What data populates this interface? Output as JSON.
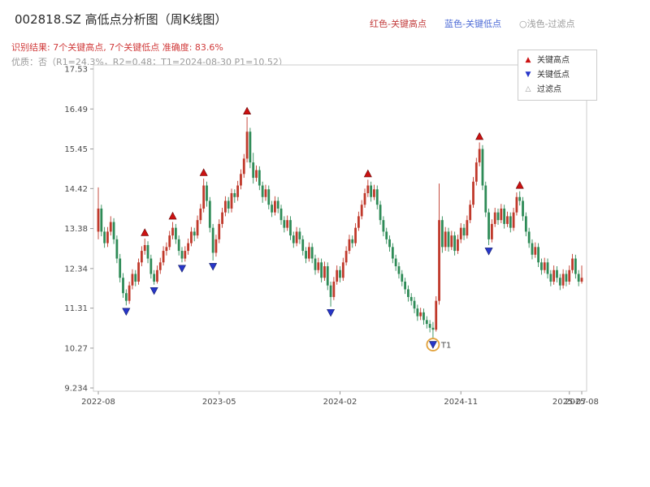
{
  "header": {
    "title": "002818.SZ 高低点分析图（周K线图）",
    "legend_top": [
      {
        "label": "红色-关键高点",
        "color": "#c23b3b"
      },
      {
        "label": "蓝色-关键低点",
        "color": "#4d6bd6"
      },
      {
        "label": "○浅色-过滤点",
        "color": "#999999"
      }
    ],
    "result_line": "识别结果: 7个关键高点, 7个关键低点  准确度: 83.6%",
    "quality_line": "优质：否（R1=24.3%，R2=0.48；T1=2024-08-30 P1=10.52）"
  },
  "chart_data": {
    "type": "candlestick",
    "symbol": "002818.SZ",
    "period": "weekly",
    "title": "002818.SZ 高低点分析图（周K线图）",
    "y_ticks": [
      "17.53",
      "16.49",
      "15.45",
      "14.42",
      "13.38",
      "12.34",
      "11.31",
      "10.27",
      "9.234"
    ],
    "ylim": [
      9.19,
      17.63
    ],
    "x_ticks": [
      {
        "week": 0,
        "label": "2022-08"
      },
      {
        "week": 39,
        "label": "2023-05"
      },
      {
        "week": 78,
        "label": "2024-02"
      },
      {
        "week": 117,
        "label": "2024-11"
      },
      {
        "week": 152,
        "label": "2025-07"
      },
      {
        "week": 156,
        "label": "2025-08"
      }
    ],
    "colors": {
      "up": "#c0392b",
      "down": "#2e8b57",
      "high_marker": "#cc1111",
      "low_marker": "#2736c9",
      "t1": "#e2a23c",
      "t1_text": "#c8861f"
    },
    "legend_box": [
      {
        "symbol": "▲",
        "label": "关键高点",
        "color": "#cc1111"
      },
      {
        "symbol": "▼",
        "label": "关键低点",
        "color": "#2736c9"
      },
      {
        "symbol": "△",
        "label": "过滤点",
        "color": "#9a9a9a"
      }
    ],
    "key_highs": [
      {
        "week": 15,
        "price": 13.12
      },
      {
        "week": 24,
        "price": 13.55
      },
      {
        "week": 34,
        "price": 14.68
      },
      {
        "week": 48,
        "price": 16.28
      },
      {
        "week": 87,
        "price": 14.65
      },
      {
        "week": 123,
        "price": 15.62
      },
      {
        "week": 136,
        "price": 14.35
      }
    ],
    "key_lows": [
      {
        "week": 9,
        "price": 11.38
      },
      {
        "week": 18,
        "price": 11.92
      },
      {
        "week": 27,
        "price": 12.5
      },
      {
        "week": 37,
        "price": 12.55
      },
      {
        "week": 75,
        "price": 11.35
      },
      {
        "week": 108,
        "price": 10.52
      },
      {
        "week": 126,
        "price": 12.95
      }
    ],
    "t1": {
      "week": 108,
      "price": 10.52,
      "label": "T1",
      "date": "2024-08-30"
    },
    "candles_ohlc": [
      [
        13.3,
        14.45,
        13.1,
        13.9
      ],
      [
        13.9,
        14.0,
        13.18,
        13.3
      ],
      [
        13.3,
        13.42,
        12.88,
        13.0
      ],
      [
        13.0,
        13.42,
        12.9,
        13.3
      ],
      [
        13.3,
        13.7,
        13.2,
        13.55
      ],
      [
        13.55,
        13.65,
        12.98,
        13.1
      ],
      [
        13.1,
        13.2,
        12.48,
        12.6
      ],
      [
        12.6,
        12.72,
        11.98,
        12.1
      ],
      [
        12.1,
        12.22,
        11.58,
        11.7
      ],
      [
        11.7,
        11.8,
        11.38,
        11.5
      ],
      [
        11.5,
        12.0,
        11.42,
        11.9
      ],
      [
        11.9,
        12.32,
        11.8,
        12.2
      ],
      [
        12.2,
        12.3,
        11.88,
        12.0
      ],
      [
        12.0,
        12.6,
        11.92,
        12.5
      ],
      [
        12.5,
        12.92,
        12.4,
        12.8
      ],
      [
        12.8,
        13.12,
        12.7,
        12.95
      ],
      [
        12.95,
        13.05,
        12.48,
        12.6
      ],
      [
        12.6,
        12.7,
        12.08,
        12.2
      ],
      [
        12.2,
        12.3,
        11.92,
        12.0
      ],
      [
        12.0,
        12.42,
        11.95,
        12.3
      ],
      [
        12.3,
        12.62,
        12.2,
        12.5
      ],
      [
        12.5,
        12.92,
        12.42,
        12.8
      ],
      [
        12.8,
        13.02,
        12.68,
        12.9
      ],
      [
        12.9,
        13.32,
        12.82,
        13.2
      ],
      [
        13.2,
        13.55,
        13.1,
        13.4
      ],
      [
        13.4,
        13.5,
        12.98,
        13.1
      ],
      [
        13.1,
        13.2,
        12.68,
        12.8
      ],
      [
        12.8,
        12.9,
        12.5,
        12.6
      ],
      [
        12.6,
        12.92,
        12.52,
        12.8
      ],
      [
        12.8,
        13.12,
        12.7,
        13.0
      ],
      [
        13.0,
        13.42,
        12.92,
        13.3
      ],
      [
        13.3,
        13.4,
        13.05,
        13.2
      ],
      [
        13.2,
        13.72,
        13.12,
        13.6
      ],
      [
        13.6,
        14.02,
        13.5,
        13.9
      ],
      [
        13.9,
        14.68,
        13.8,
        14.5
      ],
      [
        14.5,
        14.6,
        13.95,
        14.1
      ],
      [
        14.1,
        14.2,
        13.28,
        13.4
      ],
      [
        13.4,
        13.5,
        12.55,
        12.75
      ],
      [
        12.75,
        13.22,
        12.65,
        13.1
      ],
      [
        13.1,
        13.62,
        13.0,
        13.5
      ],
      [
        13.5,
        13.92,
        13.4,
        13.8
      ],
      [
        13.8,
        14.22,
        13.7,
        14.1
      ],
      [
        14.1,
        14.2,
        13.78,
        13.9
      ],
      [
        13.9,
        14.42,
        13.8,
        14.3
      ],
      [
        14.3,
        14.4,
        14.05,
        14.2
      ],
      [
        14.2,
        14.62,
        14.1,
        14.5
      ],
      [
        14.5,
        14.92,
        14.4,
        14.8
      ],
      [
        14.8,
        15.32,
        14.7,
        15.2
      ],
      [
        15.2,
        16.28,
        15.1,
        15.9
      ],
      [
        15.9,
        16.0,
        14.95,
        15.1
      ],
      [
        15.1,
        15.35,
        14.55,
        14.7
      ],
      [
        14.7,
        15.02,
        14.6,
        14.9
      ],
      [
        14.9,
        15.0,
        14.38,
        14.5
      ],
      [
        14.5,
        14.6,
        14.05,
        14.2
      ],
      [
        14.2,
        14.52,
        14.1,
        14.4
      ],
      [
        14.4,
        14.5,
        13.88,
        14.0
      ],
      [
        14.0,
        14.1,
        13.68,
        13.8
      ],
      [
        13.8,
        14.22,
        13.72,
        14.1
      ],
      [
        14.1,
        14.2,
        13.78,
        13.9
      ],
      [
        13.9,
        14.0,
        13.48,
        13.6
      ],
      [
        13.6,
        13.7,
        13.28,
        13.4
      ],
      [
        13.4,
        13.72,
        13.32,
        13.6
      ],
      [
        13.6,
        13.7,
        13.08,
        13.2
      ],
      [
        13.2,
        13.3,
        12.88,
        13.0
      ],
      [
        13.0,
        13.42,
        12.92,
        13.3
      ],
      [
        13.3,
        13.4,
        12.98,
        13.1
      ],
      [
        13.1,
        13.2,
        12.68,
        12.8
      ],
      [
        12.8,
        12.9,
        12.48,
        12.6
      ],
      [
        12.6,
        13.02,
        12.52,
        12.9
      ],
      [
        12.9,
        13.0,
        12.48,
        12.6
      ],
      [
        12.6,
        12.7,
        12.18,
        12.3
      ],
      [
        12.3,
        12.62,
        12.22,
        12.5
      ],
      [
        12.5,
        12.6,
        11.98,
        12.1
      ],
      [
        12.1,
        12.52,
        12.02,
        12.4
      ],
      [
        12.4,
        12.5,
        11.78,
        11.9
      ],
      [
        11.9,
        12.0,
        11.35,
        11.6
      ],
      [
        11.6,
        12.12,
        11.52,
        12.0
      ],
      [
        12.0,
        12.42,
        11.92,
        12.3
      ],
      [
        12.3,
        12.4,
        11.98,
        12.1
      ],
      [
        12.1,
        12.62,
        12.02,
        12.5
      ],
      [
        12.5,
        12.92,
        12.42,
        12.8
      ],
      [
        12.8,
        13.22,
        12.72,
        13.1
      ],
      [
        13.1,
        13.2,
        12.88,
        13.0
      ],
      [
        13.0,
        13.52,
        12.92,
        13.4
      ],
      [
        13.4,
        13.82,
        13.32,
        13.7
      ],
      [
        13.7,
        14.12,
        13.62,
        14.0
      ],
      [
        14.0,
        14.42,
        13.92,
        14.3
      ],
      [
        14.3,
        14.65,
        14.2,
        14.5
      ],
      [
        14.5,
        14.6,
        14.08,
        14.2
      ],
      [
        14.2,
        14.52,
        14.12,
        14.4
      ],
      [
        14.4,
        14.5,
        13.88,
        14.0
      ],
      [
        14.0,
        14.1,
        13.48,
        13.6
      ],
      [
        13.6,
        13.7,
        13.18,
        13.3
      ],
      [
        13.3,
        13.4,
        12.98,
        13.1
      ],
      [
        13.1,
        13.2,
        12.78,
        12.9
      ],
      [
        12.9,
        13.0,
        12.48,
        12.6
      ],
      [
        12.6,
        12.7,
        12.28,
        12.4
      ],
      [
        12.4,
        12.5,
        12.08,
        12.2
      ],
      [
        12.2,
        12.3,
        11.88,
        12.0
      ],
      [
        12.0,
        12.1,
        11.68,
        11.8
      ],
      [
        11.8,
        11.9,
        11.48,
        11.6
      ],
      [
        11.6,
        11.7,
        11.38,
        11.5
      ],
      [
        11.5,
        11.6,
        11.18,
        11.3
      ],
      [
        11.3,
        11.4,
        10.98,
        11.1
      ],
      [
        11.1,
        11.32,
        11.0,
        11.2
      ],
      [
        11.2,
        11.3,
        10.88,
        11.0
      ],
      [
        11.0,
        11.1,
        10.78,
        10.9
      ],
      [
        10.9,
        11.0,
        10.68,
        10.8
      ],
      [
        10.8,
        10.95,
        10.52,
        10.75
      ],
      [
        10.75,
        11.62,
        10.7,
        11.5
      ],
      [
        11.5,
        14.55,
        11.4,
        13.6
      ],
      [
        13.6,
        13.7,
        12.75,
        12.9
      ],
      [
        12.9,
        13.42,
        12.8,
        13.3
      ],
      [
        13.3,
        13.4,
        12.78,
        12.9
      ],
      [
        12.9,
        13.32,
        12.82,
        13.2
      ],
      [
        13.2,
        13.3,
        12.68,
        12.8
      ],
      [
        12.8,
        13.22,
        12.72,
        13.1
      ],
      [
        13.1,
        13.52,
        13.0,
        13.4
      ],
      [
        13.4,
        13.5,
        13.08,
        13.2
      ],
      [
        13.2,
        13.72,
        13.12,
        13.6
      ],
      [
        13.6,
        14.12,
        13.52,
        14.0
      ],
      [
        14.0,
        14.72,
        13.92,
        14.6
      ],
      [
        14.6,
        15.22,
        14.5,
        15.1
      ],
      [
        15.1,
        15.62,
        15.0,
        15.45
      ],
      [
        15.45,
        15.55,
        14.38,
        14.5
      ],
      [
        14.5,
        14.6,
        13.68,
        13.8
      ],
      [
        13.8,
        13.9,
        12.95,
        13.1
      ],
      [
        13.1,
        13.62,
        13.02,
        13.5
      ],
      [
        13.5,
        13.92,
        13.42,
        13.8
      ],
      [
        13.8,
        13.9,
        13.48,
        13.6
      ],
      [
        13.6,
        14.02,
        13.52,
        13.9
      ],
      [
        13.9,
        14.0,
        13.38,
        13.5
      ],
      [
        13.5,
        13.82,
        13.42,
        13.7
      ],
      [
        13.7,
        13.8,
        13.28,
        13.4
      ],
      [
        13.4,
        13.92,
        13.32,
        13.8
      ],
      [
        13.8,
        14.32,
        13.72,
        14.2
      ],
      [
        14.2,
        14.35,
        13.98,
        14.1
      ],
      [
        14.1,
        14.2,
        13.58,
        13.7
      ],
      [
        13.7,
        13.8,
        13.18,
        13.3
      ],
      [
        13.3,
        13.4,
        12.88,
        13.0
      ],
      [
        13.0,
        13.1,
        12.58,
        12.7
      ],
      [
        12.7,
        13.02,
        12.62,
        12.9
      ],
      [
        12.9,
        13.0,
        12.38,
        12.5
      ],
      [
        12.5,
        12.6,
        12.18,
        12.3
      ],
      [
        12.3,
        12.62,
        12.22,
        12.5
      ],
      [
        12.5,
        12.6,
        12.08,
        12.2
      ],
      [
        12.2,
        12.3,
        11.88,
        12.0
      ],
      [
        12.0,
        12.42,
        11.92,
        12.3
      ],
      [
        12.3,
        12.4,
        11.98,
        12.1
      ],
      [
        12.1,
        12.2,
        11.78,
        11.9
      ],
      [
        11.9,
        12.32,
        11.82,
        12.2
      ],
      [
        12.2,
        12.3,
        11.88,
        12.0
      ],
      [
        12.0,
        12.42,
        11.92,
        12.3
      ],
      [
        12.3,
        12.72,
        12.22,
        12.6
      ],
      [
        12.6,
        12.7,
        12.08,
        12.2
      ],
      [
        12.2,
        12.3,
        11.88,
        12.0
      ],
      [
        12.0,
        12.42,
        11.95,
        12.1
      ]
    ]
  }
}
